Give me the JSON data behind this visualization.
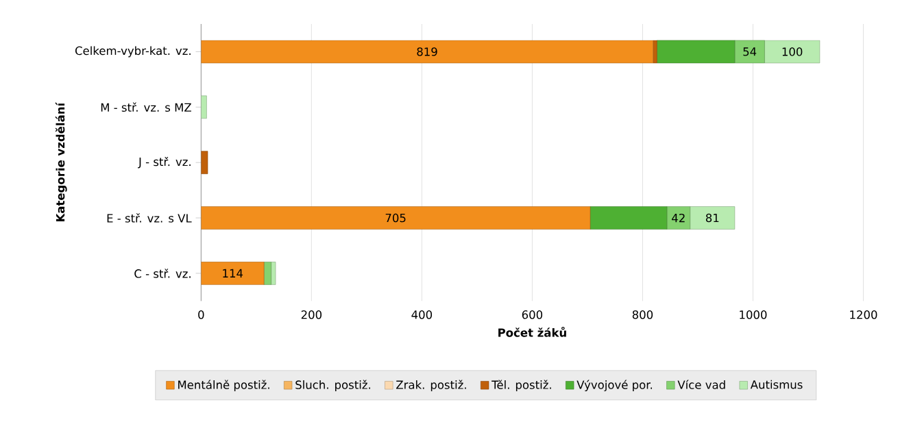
{
  "chart_data": {
    "type": "bar",
    "orientation": "horizontal",
    "stacked": true,
    "xlabel": "Počet žáků",
    "ylabel": "Kategorie vzdělání",
    "categories": [
      "Celkem-vybr-kat. vz.",
      "M - stř. vz. s MZ",
      "J - stř. vz.",
      "E - stř. vz. s VL",
      "C - stř. vz."
    ],
    "series": [
      {
        "name": "Mentálně postiž.",
        "color": "#f28e1c",
        "values": [
          819,
          0,
          0,
          705,
          114
        ],
        "value_labels": [
          "819",
          null,
          null,
          "705",
          "114"
        ]
      },
      {
        "name": "Sluch. postiž.",
        "color": "#f6b560",
        "values": [
          0,
          0,
          0,
          0,
          0
        ]
      },
      {
        "name": "Zrak. postiž.",
        "color": "#fbd9b0",
        "values": [
          0,
          0,
          0,
          0,
          0
        ]
      },
      {
        "name": "Těl. postiž.",
        "color": "#c0600a",
        "values": [
          7,
          0,
          12,
          0,
          0
        ]
      },
      {
        "name": "Vývojové por.",
        "color": "#4eb033",
        "values": [
          141,
          0,
          0,
          139,
          0
        ]
      },
      {
        "name": "Více vad",
        "color": "#84d16f",
        "values": [
          54,
          0,
          0,
          42,
          13
        ],
        "value_labels": [
          "54",
          null,
          null,
          "42",
          null
        ]
      },
      {
        "name": "Autismus",
        "color": "#b8ebb0",
        "values": [
          100,
          10,
          0,
          81,
          8
        ],
        "value_labels": [
          "100",
          null,
          null,
          "81",
          null
        ]
      }
    ],
    "xlim": [
      0,
      1200
    ],
    "xticks": [
      0,
      200,
      400,
      600,
      800,
      1000,
      1200
    ],
    "grid": "x",
    "legend": "bottom"
  }
}
